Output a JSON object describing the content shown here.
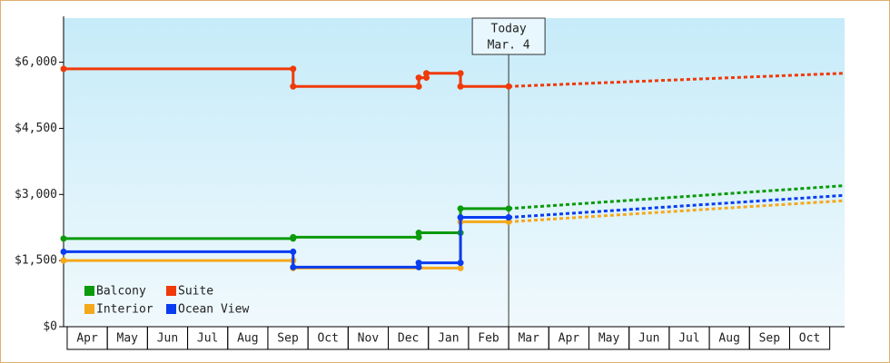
{
  "chart_data": {
    "type": "line",
    "categories": [
      "Apr",
      "May",
      "Jun",
      "Jul",
      "Aug",
      "Sep",
      "Oct",
      "Nov",
      "Dec",
      "Jan",
      "Feb",
      "Mar",
      "Apr",
      "May",
      "Jun",
      "Jul",
      "Aug",
      "Sep",
      "Oct"
    ],
    "xlim": [
      -0.09,
      19.37
    ],
    "ylim": [
      0,
      7000
    ],
    "yticks": [
      {
        "value": 0,
        "label": "$0"
      },
      {
        "value": 1500,
        "label": "$1,500"
      },
      {
        "value": 3000,
        "label": "$3,000"
      },
      {
        "value": 4500,
        "label": "$4,500"
      },
      {
        "value": 6000,
        "label": "$6,000"
      }
    ],
    "today": {
      "x": 11.0,
      "label": [
        "Today",
        "Mar. 4"
      ]
    },
    "series": [
      {
        "name": "Balcony",
        "color": "#0a9a0a",
        "x": [
          -0.09,
          5.63,
          5.63,
          8.76,
          8.76,
          9.8,
          9.8,
          11.0
        ],
        "values": [
          2000,
          2000,
          2030,
          2030,
          2130,
          2130,
          2680,
          2680
        ],
        "forecast_x": [
          11.0,
          19.37
        ],
        "forecast_values": [
          2680,
          3200
        ]
      },
      {
        "name": "Suite",
        "color": "#f03a0a",
        "x": [
          -0.09,
          5.63,
          5.63,
          8.76,
          8.76,
          8.95,
          8.95,
          9.8,
          9.8,
          11.0
        ],
        "values": [
          5850,
          5850,
          5450,
          5450,
          5650,
          5650,
          5750,
          5750,
          5450,
          5450
        ],
        "forecast_x": [
          11.0,
          19.37
        ],
        "forecast_values": [
          5450,
          5750
        ]
      },
      {
        "name": "Interior",
        "color": "#f5a81c",
        "x": [
          -0.09,
          5.63,
          5.63,
          9.8,
          9.8,
          11.0
        ],
        "values": [
          1500,
          1500,
          1330,
          1330,
          2380,
          2380
        ],
        "forecast_x": [
          11.0,
          19.37
        ],
        "forecast_values": [
          2380,
          2860
        ]
      },
      {
        "name": "Ocean View",
        "color": "#0a3cf0",
        "x": [
          -0.09,
          5.63,
          5.63,
          8.76,
          8.76,
          9.8,
          9.8,
          11.0
        ],
        "values": [
          1700,
          1700,
          1350,
          1350,
          1450,
          1450,
          2480,
          2480
        ],
        "forecast_x": [
          11.0,
          19.37
        ],
        "forecast_values": [
          2480,
          2980
        ]
      }
    ]
  }
}
